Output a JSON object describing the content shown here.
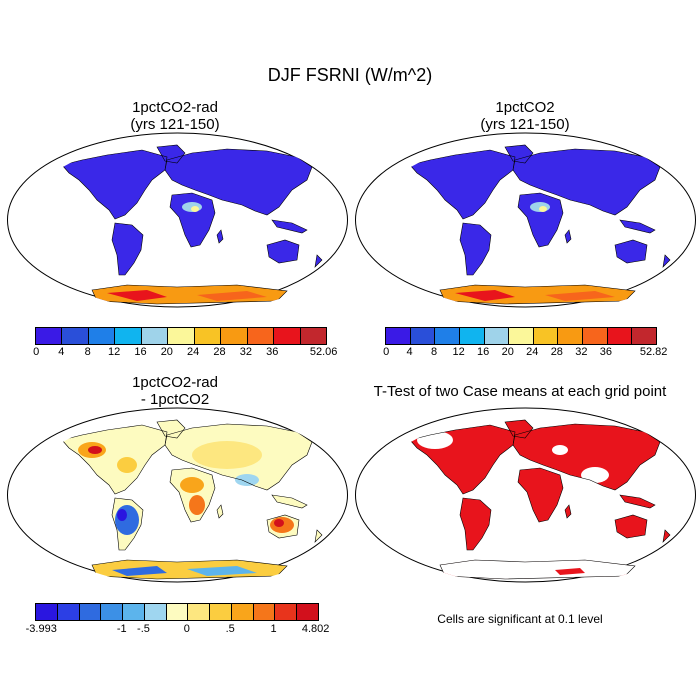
{
  "title": "DJF FSRNI (W/m^2)",
  "panels": [
    {
      "id": "p1",
      "title_line1": "1pctCO2-rad",
      "title_line2": "(yrs 121-150)"
    },
    {
      "id": "p2",
      "title_line1": "1pctCO2",
      "title_line2": "(yrs 121-150)"
    },
    {
      "id": "p3",
      "title_line1": "1pctCO2-rad",
      "title_line2": "- 1pctCO2"
    },
    {
      "id": "p4",
      "title_line1": "T-Test of two Case means at each grid point",
      "title_line2": ""
    }
  ],
  "colorbars": {
    "cb1": {
      "colors": [
        "#3a1ae6",
        "#2a4fd9",
        "#1f7fe8",
        "#10b4ef",
        "#9fd3ea",
        "#fbf79a",
        "#f8c325",
        "#f89a12",
        "#f7651c",
        "#e8141c",
        "#c2272d"
      ],
      "labels": [
        "0",
        "4",
        "8",
        "12",
        "16",
        "20",
        "24",
        "28",
        "32",
        "36",
        "52.06"
      ]
    },
    "cb2": {
      "colors": [
        "#3a1ae6",
        "#2a4fd9",
        "#1f7fe8",
        "#10b4ef",
        "#9fd3ea",
        "#fbf79a",
        "#f8c325",
        "#f89a12",
        "#f7651c",
        "#e8141c",
        "#c2272d"
      ],
      "labels": [
        "0",
        "4",
        "8",
        "12",
        "16",
        "20",
        "24",
        "28",
        "32",
        "36",
        "52.82"
      ]
    },
    "cb3": {
      "colors": [
        "#2a16e0",
        "#2c3fe5",
        "#2f6be0",
        "#3c90e6",
        "#5cb4ec",
        "#9fd6f0",
        "#fdfbc0",
        "#fde780",
        "#fbcd40",
        "#f9a51b",
        "#f5761a",
        "#e8341c",
        "#d2101c"
      ],
      "labels": [
        "-3.993",
        "-1",
        "-.5",
        "0",
        ".5",
        "1",
        "4.802"
      ]
    }
  },
  "ttest_note": "Cells are significant at 0.1 level",
  "colors": {
    "ocean": "#ffffff",
    "land_low": "#3a28e8",
    "significant": "#e8141c",
    "anomaly_neutral": "#fdfbc0"
  }
}
